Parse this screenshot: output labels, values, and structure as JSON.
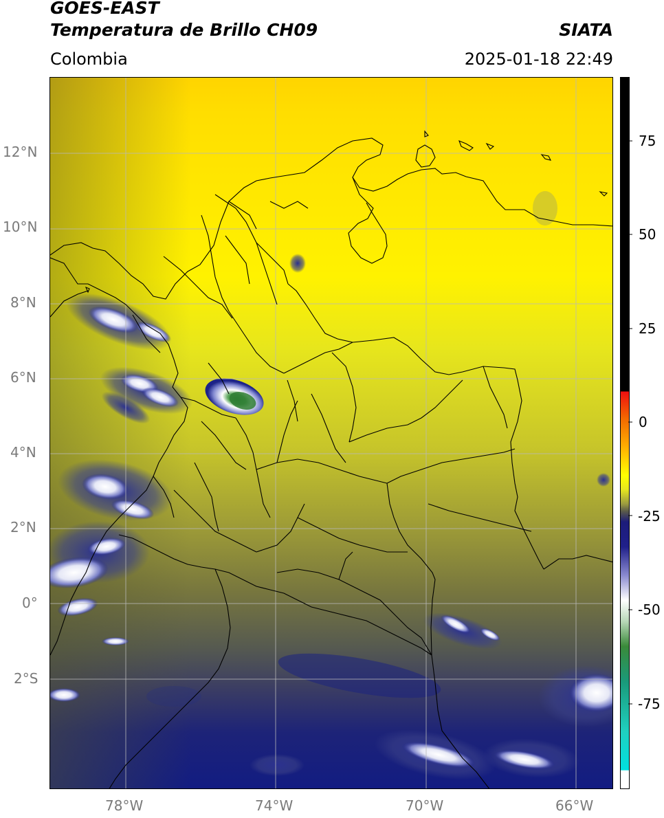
{
  "header": {
    "satellite": "GOES-EAST",
    "product": "Temperatura de Brillo CH09",
    "region": "Colombia",
    "agency": "SIATA",
    "datetime": "2025-01-18 22:49"
  },
  "map": {
    "latitude_labels": [
      "12°N",
      "10°N",
      "8°N",
      "6°N",
      "4°N",
      "2°N",
      "0°",
      "2°S"
    ],
    "longitude_labels": [
      "78°W",
      "74°W",
      "70°W",
      "66°W"
    ],
    "lon_range": [
      -80,
      -65
    ],
    "lat_range": [
      -5,
      14
    ]
  },
  "colorbar": {
    "tick_labels": [
      "75",
      "50",
      "25",
      "0",
      "-25",
      "-50",
      "-75"
    ],
    "tick_values": [
      75,
      50,
      25,
      0,
      -25,
      -50,
      -75
    ],
    "range": [
      -100,
      90
    ],
    "colors": {
      "black": "#000000",
      "red": "#e8321e",
      "orange": "#f08c00",
      "yellow": "#ffff00",
      "olive": "#7a7a3a",
      "navy": "#1a1a80",
      "white": "#ffffff",
      "green": "#2e8b3a",
      "cyan": "#00d8d8"
    }
  }
}
